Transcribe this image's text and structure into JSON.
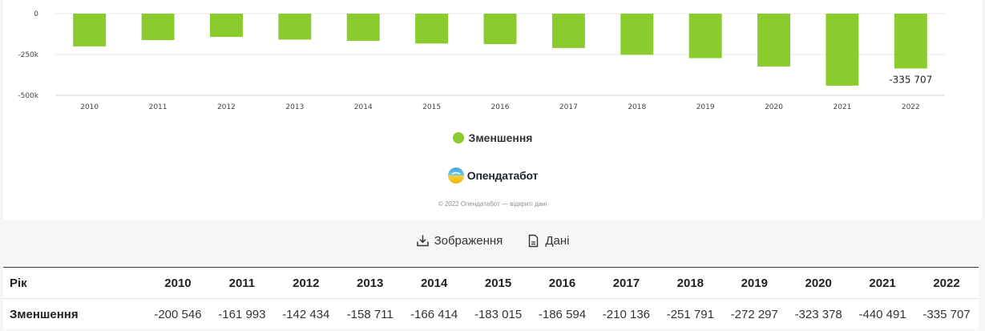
{
  "chart_data": {
    "type": "bar",
    "categories": [
      "2010",
      "2011",
      "2012",
      "2013",
      "2014",
      "2015",
      "2016",
      "2017",
      "2018",
      "2019",
      "2020",
      "2021",
      "2022"
    ],
    "series": [
      {
        "name": "Зменшення",
        "values": [
          -200546,
          -161993,
          -142434,
          -158711,
          -166414,
          -183015,
          -186594,
          -210136,
          -251791,
          -272297,
          -323378,
          -440491,
          -335707
        ],
        "color": "#8ccb2d"
      }
    ],
    "y_ticks": [
      "0",
      "-250k",
      "-500k"
    ],
    "y_tick_values": [
      0,
      -250000,
      -500000
    ],
    "ylim": [
      -500000,
      0
    ],
    "data_labels": [
      {
        "category": "2022",
        "text": "-335 707"
      }
    ],
    "grid": true,
    "legend": "bottom-center"
  },
  "legend": {
    "label": "Зменшення",
    "color": "#8ccb2d"
  },
  "branding": {
    "logo_text": "Опендатабот",
    "copyright": "© 2022 Опендатабот — відкриті дані"
  },
  "actions": {
    "image_label": "Зображення",
    "data_label": "Дані"
  },
  "table": {
    "header_label": "Рік",
    "row_label": "Зменшення",
    "years": [
      "2010",
      "2011",
      "2012",
      "2013",
      "2014",
      "2015",
      "2016",
      "2017",
      "2018",
      "2019",
      "2020",
      "2021",
      "2022"
    ],
    "values": [
      "-200 546",
      "-161 993",
      "-142 434",
      "-158 711",
      "-166 414",
      "-183 015",
      "-186 594",
      "-210 136",
      "-251 791",
      "-272 297",
      "-323 378",
      "-440 491",
      "-335 707"
    ]
  }
}
